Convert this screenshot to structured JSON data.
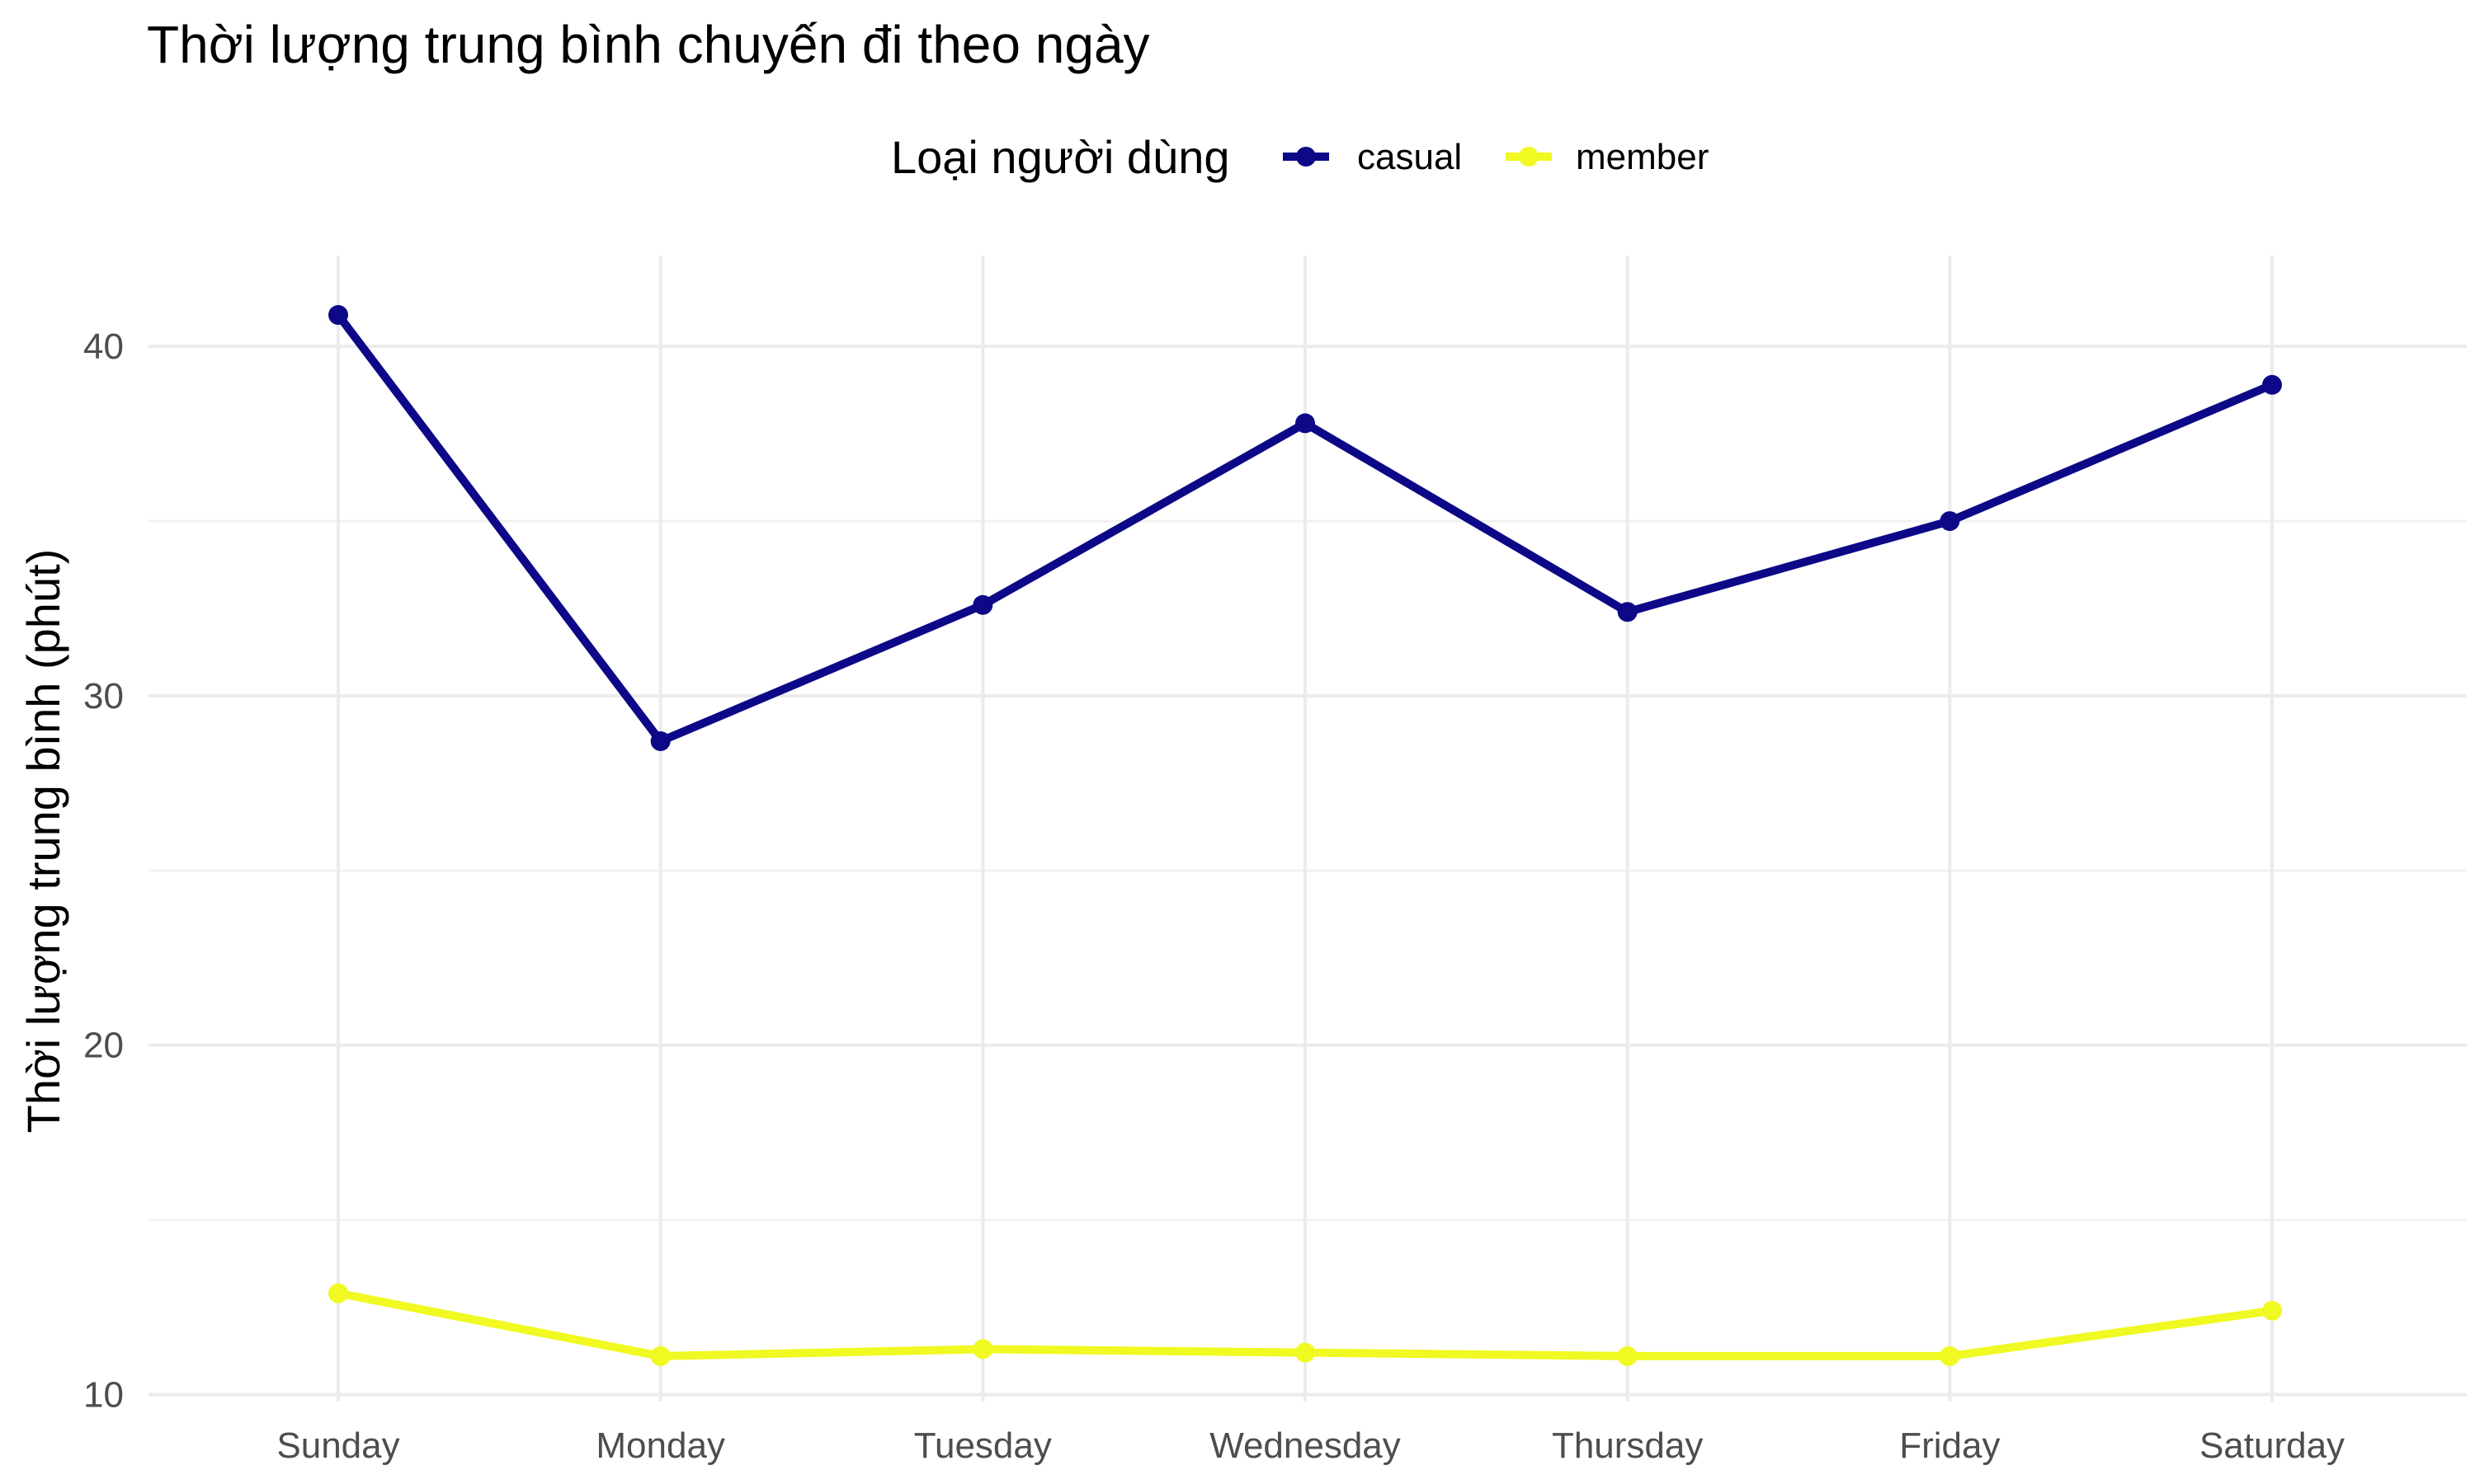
{
  "chart_data": {
    "type": "line",
    "title": "Thời lượng trung bình chuyến đi theo ngày",
    "xlabel": "",
    "ylabel": "Thời lượng trung bình (phút)",
    "categories": [
      "Sunday",
      "Monday",
      "Tuesday",
      "Wednesday",
      "Thursday",
      "Friday",
      "Saturday"
    ],
    "series": [
      {
        "name": "casual",
        "color": "#0d0887",
        "values": [
          40.9,
          28.7,
          32.6,
          37.8,
          32.4,
          35.0,
          38.9
        ]
      },
      {
        "name": "member",
        "color": "#f0f921",
        "values": [
          12.9,
          11.1,
          11.3,
          11.2,
          11.1,
          11.1,
          12.4
        ]
      }
    ],
    "ylim": [
      9.8,
      42.6
    ],
    "y_ticks": [
      10,
      20,
      30,
      40
    ],
    "y_tick_labels": [
      "10",
      "20",
      "30",
      "40"
    ],
    "y_minor_ticks": [
      15,
      25,
      35
    ],
    "grid": true,
    "legend": {
      "title": "Loại người dùng",
      "position": "top"
    }
  }
}
